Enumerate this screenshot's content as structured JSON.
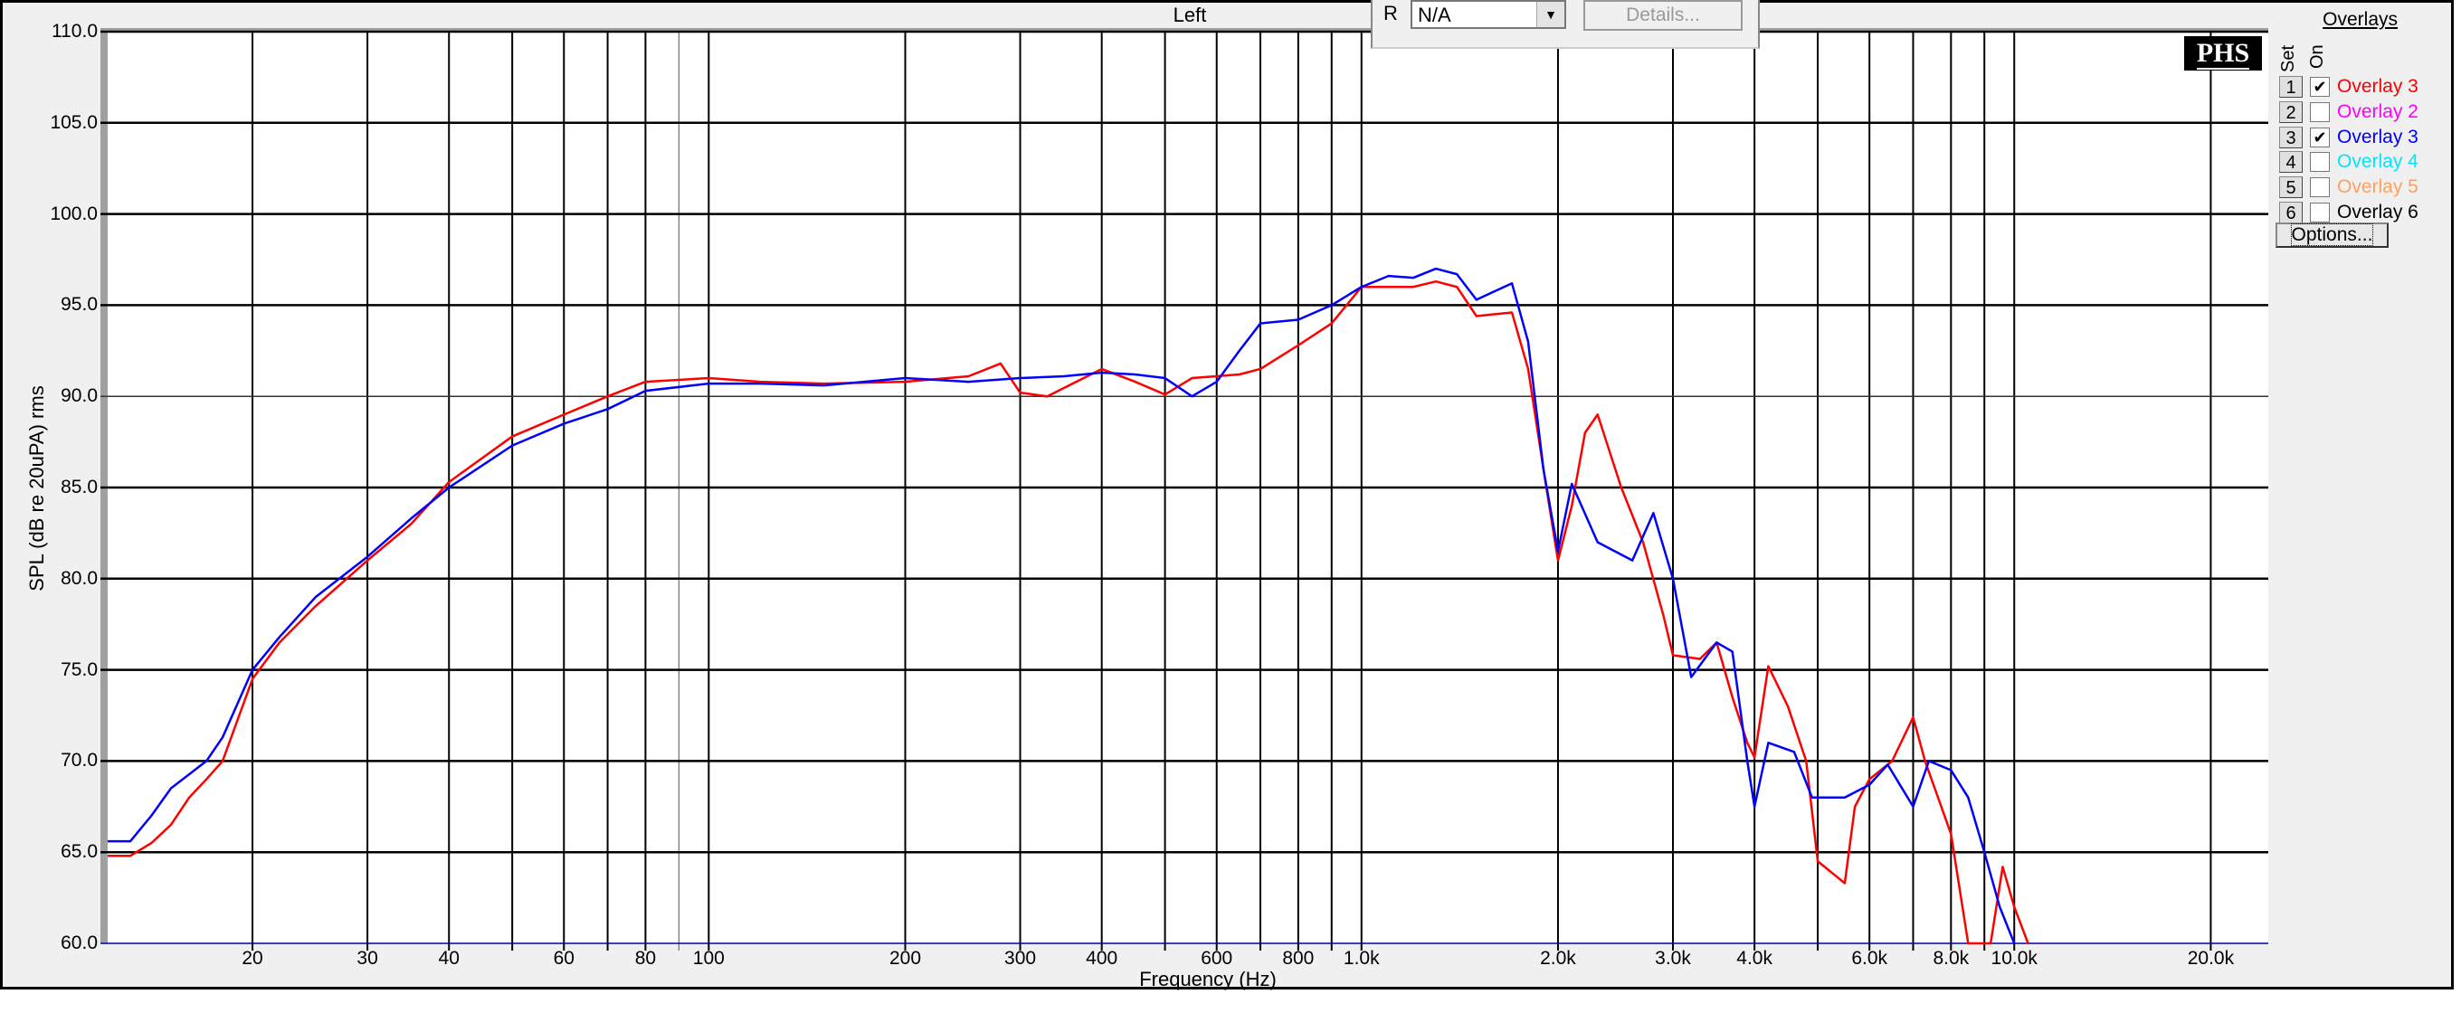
{
  "top": {
    "channel_label": "Left",
    "r_label": "R",
    "r_value": "N/A",
    "details_label": "Details..."
  },
  "logo": "PHS",
  "legend": {
    "title": "Overlays",
    "set_header": "Set",
    "on_header": "On",
    "options_label": "Options...",
    "items": [
      {
        "set": "1",
        "label": "Overlay 3",
        "on": true,
        "color": "#ff0000"
      },
      {
        "set": "2",
        "label": "Overlay 2",
        "on": false,
        "color": "#ff00ff"
      },
      {
        "set": "3",
        "label": "Overlay 3",
        "on": true,
        "color": "#0000ff"
      },
      {
        "set": "4",
        "label": "Overlay 4",
        "on": false,
        "color": "#00e5ff"
      },
      {
        "set": "5",
        "label": "Overlay 5",
        "on": false,
        "color": "#ffa060"
      },
      {
        "set": "6",
        "label": "Overlay 6",
        "on": false,
        "color": "#000000"
      }
    ]
  },
  "chart_data": {
    "type": "line",
    "xlabel": "Frequency (Hz)",
    "ylabel": "SPL (dB re 20uPA) rms",
    "xscale": "log",
    "xlim": [
      12,
      24500
    ],
    "ylim": [
      60,
      110
    ],
    "grid": true,
    "legend_placement": "right",
    "yticks": [
      "110.0",
      "105.0",
      "100.0",
      "95.0",
      "90.0",
      "85.0",
      "80.0",
      "75.0",
      "70.0",
      "65.0",
      "60.0"
    ],
    "xticks": [
      {
        "v": 20,
        "t": "20"
      },
      {
        "v": 30,
        "t": "30"
      },
      {
        "v": 40,
        "t": "40"
      },
      {
        "v": 60,
        "t": "60"
      },
      {
        "v": 80,
        "t": "80"
      },
      {
        "v": 100,
        "t": "100"
      },
      {
        "v": 200,
        "t": "200"
      },
      {
        "v": 300,
        "t": "300"
      },
      {
        "v": 400,
        "t": "400"
      },
      {
        "v": 600,
        "t": "600"
      },
      {
        "v": 800,
        "t": "800"
      },
      {
        "v": 1000,
        "t": "1.0k"
      },
      {
        "v": 2000,
        "t": "2.0k"
      },
      {
        "v": 3000,
        "t": "3.0k"
      },
      {
        "v": 4000,
        "t": "4.0k"
      },
      {
        "v": 6000,
        "t": "6.0k"
      },
      {
        "v": 8000,
        "t": "8.0k"
      },
      {
        "v": 10000,
        "t": "10.0k"
      },
      {
        "v": 20000,
        "t": "20.0k"
      }
    ],
    "series": [
      {
        "name": "Overlay 3",
        "color": "#ff0000",
        "points": [
          [
            12,
            64.8
          ],
          [
            13,
            64.8
          ],
          [
            14,
            65.5
          ],
          [
            15,
            66.5
          ],
          [
            16,
            68
          ],
          [
            17,
            69
          ],
          [
            18,
            70
          ],
          [
            20,
            74.5
          ],
          [
            22,
            76.5
          ],
          [
            25,
            78.5
          ],
          [
            30,
            81
          ],
          [
            35,
            83
          ],
          [
            40,
            85.3
          ],
          [
            50,
            87.8
          ],
          [
            60,
            89
          ],
          [
            70,
            90
          ],
          [
            80,
            90.8
          ],
          [
            100,
            91
          ],
          [
            120,
            90.8
          ],
          [
            150,
            90.7
          ],
          [
            200,
            90.8
          ],
          [
            250,
            91.1
          ],
          [
            280,
            91.8
          ],
          [
            300,
            90.2
          ],
          [
            330,
            90.0
          ],
          [
            400,
            91.5
          ],
          [
            450,
            90.8
          ],
          [
            500,
            90.1
          ],
          [
            550,
            91
          ],
          [
            650,
            91.2
          ],
          [
            700,
            91.5
          ],
          [
            800,
            92.8
          ],
          [
            900,
            94
          ],
          [
            1000,
            96
          ],
          [
            1200,
            96
          ],
          [
            1300,
            96.3
          ],
          [
            1400,
            96
          ],
          [
            1500,
            94.4
          ],
          [
            1700,
            94.6
          ],
          [
            1800,
            91.5
          ],
          [
            1900,
            86
          ],
          [
            2000,
            81
          ],
          [
            2100,
            84
          ],
          [
            2200,
            88
          ],
          [
            2300,
            89
          ],
          [
            2500,
            85
          ],
          [
            2700,
            82
          ],
          [
            2900,
            78
          ],
          [
            3000,
            75.8
          ],
          [
            3300,
            75.6
          ],
          [
            3500,
            76.5
          ],
          [
            3700,
            73.5
          ],
          [
            3900,
            71
          ],
          [
            4000,
            70.2
          ],
          [
            4200,
            75.2
          ],
          [
            4500,
            73
          ],
          [
            4800,
            70
          ],
          [
            5000,
            64.5
          ],
          [
            5500,
            63.3
          ],
          [
            5700,
            67.5
          ],
          [
            6000,
            69
          ],
          [
            6500,
            70
          ],
          [
            7000,
            72.4
          ],
          [
            7300,
            70
          ],
          [
            8000,
            66
          ],
          [
            8500,
            60
          ],
          [
            9200,
            60
          ],
          [
            9600,
            64.2
          ],
          [
            10000,
            62
          ],
          [
            10500,
            60
          ]
        ]
      },
      {
        "name": "Overlay 3",
        "color": "#0000ff",
        "points": [
          [
            12,
            65.6
          ],
          [
            13,
            65.6
          ],
          [
            14,
            67
          ],
          [
            15,
            68.5
          ],
          [
            17,
            70
          ],
          [
            18,
            71.3
          ],
          [
            20,
            75
          ],
          [
            22,
            76.8
          ],
          [
            25,
            79
          ],
          [
            30,
            81.2
          ],
          [
            35,
            83.3
          ],
          [
            40,
            85
          ],
          [
            50,
            87.3
          ],
          [
            60,
            88.5
          ],
          [
            70,
            89.3
          ],
          [
            80,
            90.3
          ],
          [
            100,
            90.7
          ],
          [
            120,
            90.7
          ],
          [
            150,
            90.6
          ],
          [
            200,
            91
          ],
          [
            250,
            90.8
          ],
          [
            300,
            91
          ],
          [
            350,
            91.1
          ],
          [
            400,
            91.3
          ],
          [
            450,
            91.2
          ],
          [
            500,
            91
          ],
          [
            550,
            90
          ],
          [
            600,
            90.8
          ],
          [
            650,
            92.5
          ],
          [
            700,
            94
          ],
          [
            800,
            94.2
          ],
          [
            900,
            95
          ],
          [
            1000,
            96
          ],
          [
            1100,
            96.6
          ],
          [
            1200,
            96.5
          ],
          [
            1300,
            97
          ],
          [
            1400,
            96.7
          ],
          [
            1500,
            95.3
          ],
          [
            1700,
            96.2
          ],
          [
            1800,
            93
          ],
          [
            1900,
            86
          ],
          [
            2000,
            81.5
          ],
          [
            2100,
            85.2
          ],
          [
            2300,
            82
          ],
          [
            2600,
            81
          ],
          [
            2800,
            83.6
          ],
          [
            3000,
            80
          ],
          [
            3200,
            74.6
          ],
          [
            3500,
            76.5
          ],
          [
            3700,
            76
          ],
          [
            3900,
            70
          ],
          [
            4000,
            67.5
          ],
          [
            4200,
            71
          ],
          [
            4600,
            70.5
          ],
          [
            4900,
            68
          ],
          [
            5500,
            68
          ],
          [
            6000,
            68.7
          ],
          [
            6400,
            69.8
          ],
          [
            7000,
            67.5
          ],
          [
            7400,
            70
          ],
          [
            8000,
            69.5
          ],
          [
            8500,
            68
          ],
          [
            9000,
            65
          ],
          [
            9500,
            62
          ],
          [
            10000,
            60
          ]
        ]
      }
    ]
  }
}
